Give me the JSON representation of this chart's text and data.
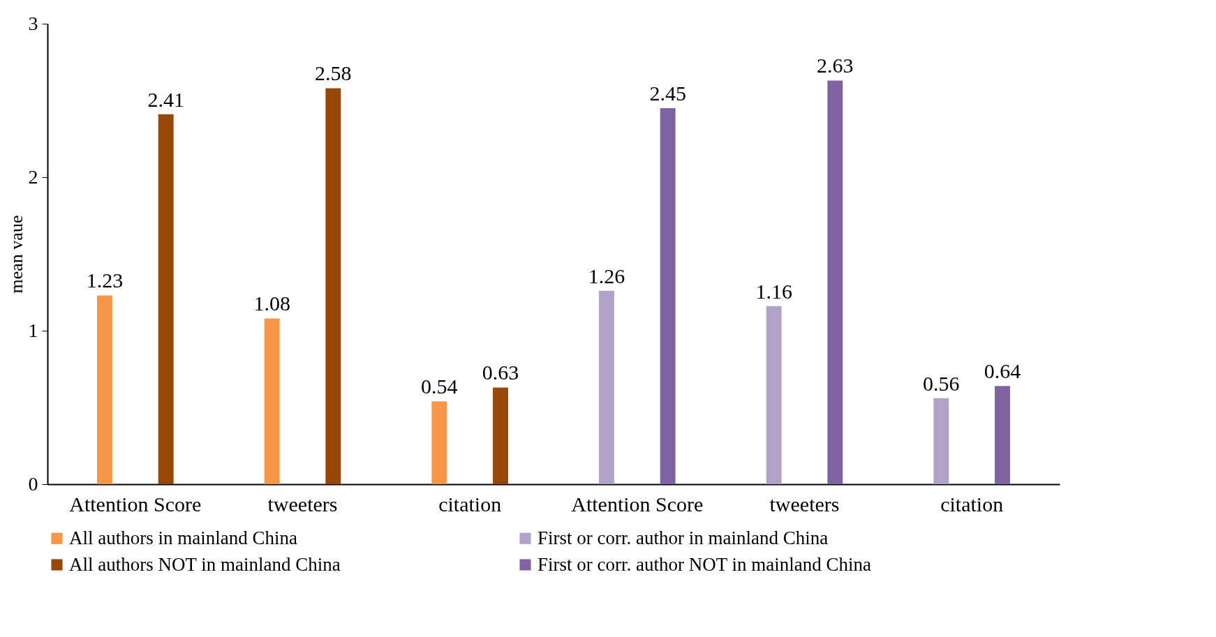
{
  "chart_data": {
    "type": "bar",
    "ylabel": "mean vaue",
    "categories": [
      "Attention Score",
      "tweeters",
      "citation",
      "Attention Score",
      "tweeters",
      "citation"
    ],
    "series": [
      {
        "name": "All authors in mainland China",
        "color": "#f79646",
        "values": [
          1.23,
          1.08,
          0.54,
          null,
          null,
          null
        ]
      },
      {
        "name": "All authors NOT in mainland China",
        "color": "#974806",
        "values": [
          2.41,
          2.58,
          0.63,
          null,
          null,
          null
        ]
      },
      {
        "name": "First or corr. author in mainland China",
        "color": "#b3a2c7",
        "values": [
          null,
          null,
          null,
          1.26,
          1.16,
          0.56
        ]
      },
      {
        "name": "First or corr. author NOT in mainland China",
        "color": "#8064a2",
        "values": [
          null,
          null,
          null,
          2.45,
          2.63,
          0.64
        ]
      }
    ],
    "ylim": [
      0,
      3
    ],
    "yticks": [
      0,
      1,
      2,
      3
    ],
    "grid": false,
    "legend": "bottom",
    "data_labels": true
  }
}
